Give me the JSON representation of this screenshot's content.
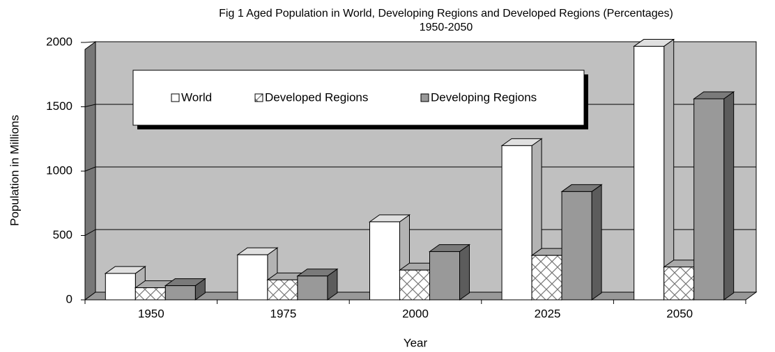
{
  "chart_data": {
    "type": "bar3d",
    "title": [
      "Fig 1 Aged Population in World, Developing Regions and Developed Regions (Percentages)",
      "1950-2050"
    ],
    "x_label": "Year",
    "y_label": "Population in Millions",
    "categories": [
      "1950",
      "1975",
      "2000",
      "2025",
      "2050"
    ],
    "series": [
      {
        "name": "World",
        "color": "#ffffff",
        "values": [
          205,
          350,
          606,
          1198,
          1970
        ]
      },
      {
        "name": "Developed Regions",
        "color": "#ffffff",
        "hatch": true,
        "values": [
          94,
          155,
          231,
          345,
          255
        ]
      },
      {
        "name": "Developing Regions",
        "color": "#999999",
        "values": [
          110,
          185,
          375,
          841,
          1562
        ]
      }
    ],
    "ylim": [
      0,
      2000
    ],
    "yticks": [
      0,
      500,
      1000,
      1500,
      2000
    ],
    "grid": true,
    "legend": "top"
  }
}
